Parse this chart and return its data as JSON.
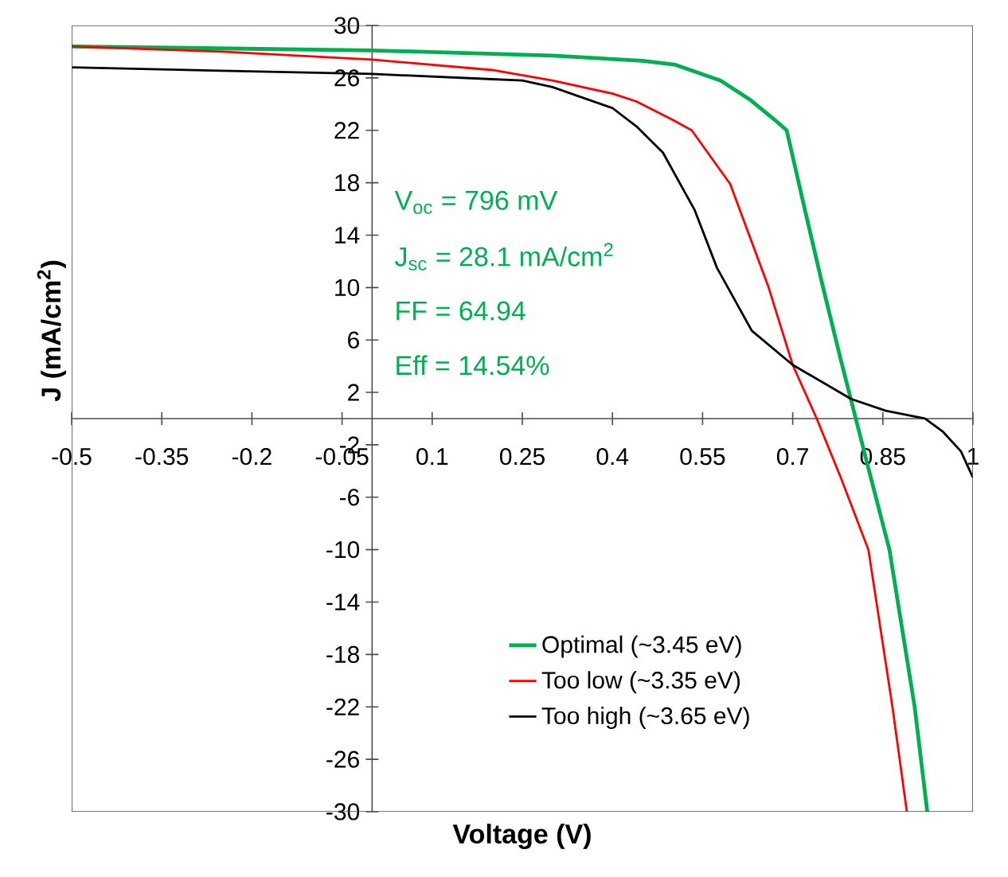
{
  "chart_data": {
    "type": "line",
    "xlabel": "**Voltage (V)**",
    "ylabel": "**J (mA/cm$^{2}$)**",
    "xlim": [
      -0.5,
      1
    ],
    "ylim": [
      -30,
      30
    ],
    "xticks": [
      -0.5,
      -0.35,
      -0.2,
      -0.05,
      0.1,
      0.25,
      0.4,
      0.55,
      0.7,
      0.85,
      1
    ],
    "yticks": [
      -30,
      -26,
      -22,
      -18,
      -14,
      -10,
      -6,
      -2,
      2,
      6,
      10,
      14,
      18,
      22,
      26,
      30
    ],
    "legend": "bottom",
    "annotations": [
      "V$_{oc}$ = 796 mV",
      "J$_{sc}$ = 28.1 mA/cm$^{2}$",
      "FF = 64.94",
      "Eff = 14.54%"
    ],
    "series": [
      {
        "name": "Optimal (~3.45 eV)",
        "color": "#00b050",
        "x": [
          -0.5,
          0,
          0.3,
          0.45,
          0.505,
          0.58,
          0.63,
          0.67,
          0.69,
          0.72,
          0.749,
          0.78,
          0.805,
          0.83,
          0.861,
          0.903,
          0.924
        ],
        "values": [
          28.4,
          28.1,
          27.7,
          27.3,
          27,
          25.8,
          24.3,
          22.8,
          22,
          16,
          10.3,
          4.5,
          0,
          -4.5,
          -10,
          -22,
          -30
        ]
      },
      {
        "name": "Too low (~3.35 eV)",
        "color": "#ff0000",
        "x": [
          -0.5,
          -0.25,
          0,
          0.2,
          0.3,
          0.4,
          0.44,
          0.5,
          0.532,
          0.596,
          0.66,
          0.7,
          0.74,
          0.78,
          0.826,
          0.866,
          0.89
        ],
        "values": [
          28.4,
          28,
          27.4,
          26.6,
          25.8,
          24.8,
          24.2,
          22.8,
          22,
          17.9,
          10,
          4.1,
          0,
          -4.5,
          -10,
          -22,
          -30
        ]
      },
      {
        "name": "Too high (~3.65 eV)",
        "color": "#000000",
        "x": [
          -0.5,
          0,
          0.2,
          0.25,
          0.3,
          0.4,
          0.44,
          0.484,
          0.537,
          0.574,
          0.632,
          0.7,
          0.797,
          0.855,
          0.92,
          0.95,
          0.98,
          1
        ],
        "values": [
          26.8,
          26.3,
          25.9,
          25.8,
          25.3,
          23.7,
          22.3,
          20.3,
          15.9,
          11.5,
          6.7,
          4.1,
          1.5,
          0.6,
          0,
          -1,
          -2.5,
          -4.5
        ]
      }
    ]
  }
}
